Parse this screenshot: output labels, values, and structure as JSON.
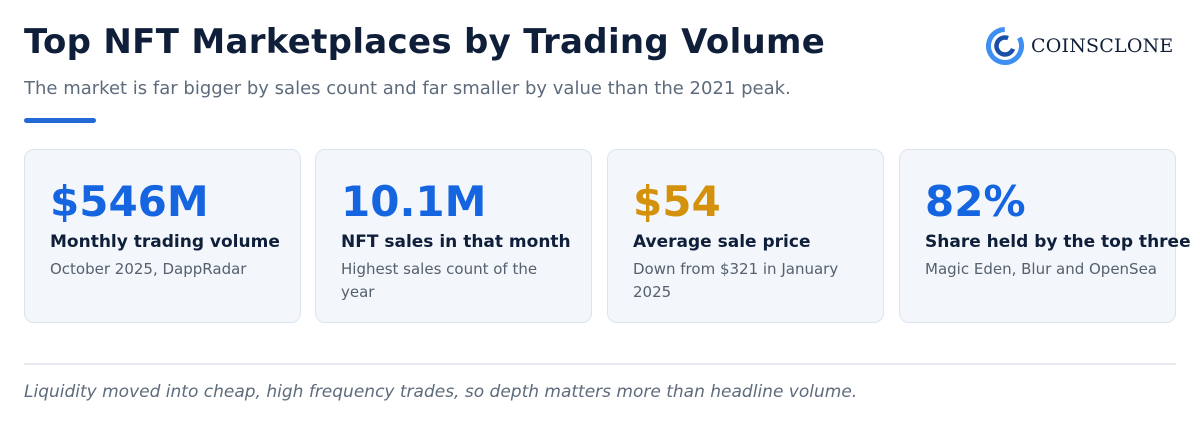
{
  "header": {
    "title": "Top NFT Marketplaces by Trading Volume",
    "subtitle": "The market is far bigger by sales count and far smaller by value than the 2021 peak.",
    "accent_color": "#2268d6"
  },
  "logo": {
    "text": "COINSCLONE",
    "icon": "coinsclone-logo-icon",
    "color": "#3d8ff2"
  },
  "stats": [
    {
      "value": "$546M",
      "label": "Monthly trading volume",
      "note": "October 2025, DappRadar",
      "color": "#1565e0"
    },
    {
      "value": "10.1M",
      "label": "NFT sales in that month",
      "note": "Highest sales count of the year",
      "color": "#1565e0"
    },
    {
      "value": "$54",
      "label": "Average sale price",
      "note": "Down from $321 in January 2025",
      "color": "#d4910c"
    },
    {
      "value": "82%",
      "label": "Share held by the top three",
      "note": "Magic Eden, Blur and OpenSea",
      "color": "#1565e0"
    }
  ],
  "footer": {
    "note": "Liquidity moved into cheap, high frequency trades, so depth matters more than headline volume."
  }
}
